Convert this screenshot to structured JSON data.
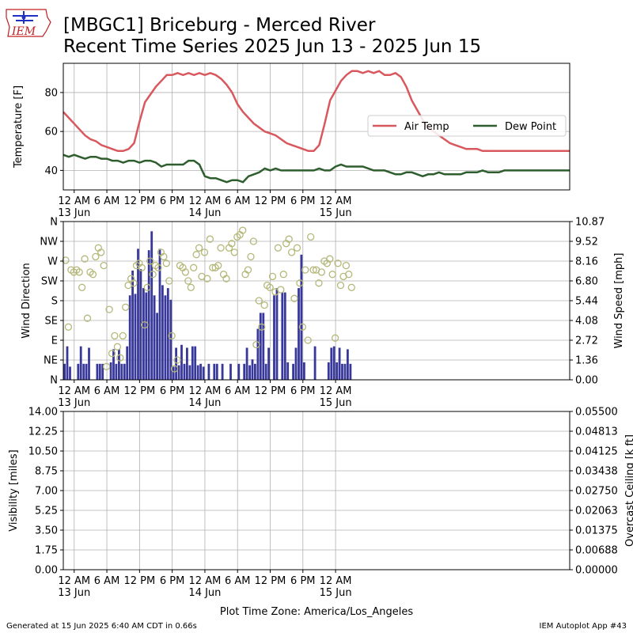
{
  "header": {
    "logo_text": "IEM",
    "title_line1": "[MBGC1] Briceburg - Merced River",
    "title_line2": "Recent Time Series 2025 Jun 13 - 2025 Jun 15"
  },
  "footer": {
    "generated": "Generated at 15 Jun 2025 6:40 AM CDT in 0.66s",
    "app": "IEM Autoplot App #43",
    "timezone_label": "Plot Time Zone: America/Los_Angeles"
  },
  "colors": {
    "air_temp": "#d9585e",
    "dew_point": "#2e5d2e",
    "wind_speed_bars": "#38389a",
    "wind_direction_markers": "#b5b87a",
    "ceiling_label": "#008000",
    "grid": "#b0b0b0"
  },
  "time_axis": {
    "xlim_hours": [
      -2,
      91
    ],
    "ticks": [
      {
        "hour": 0,
        "line1": "12 AM",
        "line2": "13 Jun"
      },
      {
        "hour": 6,
        "line1": "6 AM",
        "line2": ""
      },
      {
        "hour": 12,
        "line1": "12 PM",
        "line2": ""
      },
      {
        "hour": 18,
        "line1": "6 PM",
        "line2": ""
      },
      {
        "hour": 24,
        "line1": "12 AM",
        "line2": "14 Jun"
      },
      {
        "hour": 30,
        "line1": "6 AM",
        "line2": ""
      },
      {
        "hour": 36,
        "line1": "12 PM",
        "line2": ""
      },
      {
        "hour": 42,
        "line1": "6 PM",
        "line2": ""
      },
      {
        "hour": 48,
        "line1": "12 AM",
        "line2": "15 Jun"
      }
    ]
  },
  "chart_data": [
    {
      "type": "line",
      "ylabel": "Temperature [F]",
      "ylim": [
        30,
        95
      ],
      "yticks": [
        40,
        60,
        80
      ],
      "grid": true,
      "legend": "center-right",
      "series": [
        {
          "name": "Air Temp",
          "x": [
            -2,
            -1,
            0,
            1,
            2,
            3,
            4,
            5,
            6,
            7,
            8,
            9,
            10,
            11,
            12,
            13,
            14,
            15,
            16,
            17,
            18,
            19,
            20,
            21,
            22,
            23,
            24,
            25,
            26,
            27,
            28,
            29,
            30,
            31,
            32,
            33,
            34,
            35,
            36,
            37,
            38,
            39,
            40,
            41,
            42,
            43,
            44,
            45,
            46,
            47,
            48,
            49,
            50,
            51,
            52,
            53,
            54,
            55,
            56,
            57,
            58,
            59,
            60,
            61,
            62,
            63,
            64,
            65,
            66,
            67,
            68,
            69,
            70,
            71,
            72,
            73,
            74,
            75,
            76,
            77,
            78,
            79,
            80,
            81,
            82,
            83,
            84,
            85,
            86,
            87,
            88,
            89,
            90,
            91
          ],
          "y": [
            70,
            67,
            64,
            61,
            58,
            56,
            55,
            53,
            52,
            51,
            50,
            50,
            51,
            54,
            65,
            75,
            79,
            83,
            86,
            89,
            89,
            90,
            89,
            90,
            89,
            90,
            89,
            90,
            89,
            87,
            84,
            80,
            74,
            70,
            67,
            64,
            62,
            60,
            59,
            58,
            56,
            54,
            53,
            52,
            51,
            50,
            50,
            53,
            64,
            76,
            81,
            86,
            89,
            91,
            91,
            90,
            91,
            90,
            91,
            89,
            89,
            90,
            88,
            83,
            76,
            71,
            66,
            62,
            60,
            58,
            56,
            54,
            53,
            52,
            51,
            51,
            51,
            50,
            50,
            50,
            50,
            50,
            50,
            50,
            50,
            50,
            50,
            50,
            50,
            50,
            50,
            50,
            50,
            50
          ]
        },
        {
          "name": "Dew Point",
          "x": [
            -2,
            -1,
            0,
            1,
            2,
            3,
            4,
            5,
            6,
            7,
            8,
            9,
            10,
            11,
            12,
            13,
            14,
            15,
            16,
            17,
            18,
            19,
            20,
            21,
            22,
            23,
            24,
            25,
            26,
            27,
            28,
            29,
            30,
            31,
            32,
            33,
            34,
            35,
            36,
            37,
            38,
            39,
            40,
            41,
            42,
            43,
            44,
            45,
            46,
            47,
            48,
            49,
            50,
            51,
            52,
            53,
            54,
            55,
            56,
            57,
            58,
            59,
            60,
            61,
            62,
            63,
            64,
            65,
            66,
            67,
            68,
            69,
            70,
            71,
            72,
            73,
            74,
            75,
            76,
            77,
            78,
            79,
            80,
            81,
            82,
            83,
            84,
            85,
            86,
            87,
            88,
            89,
            90,
            91
          ],
          "y": [
            48,
            47,
            48,
            47,
            46,
            47,
            47,
            46,
            46,
            45,
            45,
            44,
            45,
            45,
            44,
            45,
            45,
            44,
            42,
            43,
            43,
            43,
            43,
            45,
            45,
            43,
            37,
            36,
            36,
            35,
            34,
            35,
            35,
            34,
            37,
            38,
            39,
            41,
            40,
            41,
            40,
            40,
            40,
            40,
            40,
            40,
            40,
            41,
            40,
            40,
            42,
            43,
            42,
            42,
            42,
            42,
            41,
            40,
            40,
            40,
            39,
            38,
            38,
            39,
            39,
            38,
            37,
            38,
            38,
            39,
            38,
            38,
            38,
            38,
            39,
            39,
            39,
            40,
            39,
            39,
            39,
            40,
            40,
            40,
            40,
            40,
            40,
            40,
            40,
            40,
            40,
            40,
            40,
            40
          ]
        }
      ]
    },
    {
      "type": "bar",
      "ylabel": "Wind Direction",
      "y2label": "Wind Speed [mph]",
      "ylim": [
        0,
        360
      ],
      "yticks": [
        {
          "value": 0,
          "label": "N"
        },
        {
          "value": 45,
          "label": "NE"
        },
        {
          "value": 90,
          "label": "E"
        },
        {
          "value": 135,
          "label": "SE"
        },
        {
          "value": 180,
          "label": "S"
        },
        {
          "value": 225,
          "label": "SW"
        },
        {
          "value": 270,
          "label": "W"
        },
        {
          "value": 315,
          "label": "NW"
        },
        {
          "value": 360,
          "label": "N"
        }
      ],
      "y2lim": [
        0,
        10.87
      ],
      "y2ticks": [
        "0.00",
        "1.36",
        "2.72",
        "4.08",
        "5.44",
        "6.80",
        "8.16",
        "9.52",
        "10.87"
      ],
      "grid": true,
      "wind_speed": {
        "name": "Wind Speed",
        "x": [
          -2,
          -1.5,
          -1,
          -0.5,
          0,
          0.5,
          1,
          1.5,
          2,
          2.5,
          3,
          3.5,
          4,
          4.5,
          5,
          5.5,
          6,
          6.5,
          7,
          7.5,
          8,
          8.5,
          9,
          9.5,
          10,
          10.5,
          11,
          11.5,
          12,
          12.5,
          13,
          13.5,
          14,
          14.5,
          15,
          15.5,
          16,
          16.5,
          17,
          17.5,
          18,
          18.5,
          19,
          19.5,
          20,
          20.5,
          21,
          21.5,
          22,
          22.5,
          23,
          23.5,
          24,
          24.5,
          25,
          25.5,
          26,
          26.5,
          27,
          27.5,
          28,
          28.5,
          29,
          29.5,
          30,
          30.5,
          31,
          31.5,
          32,
          32.5,
          33,
          33.5,
          34,
          34.5,
          35,
          35.5,
          36,
          36.5,
          37,
          37.5,
          38,
          38.5,
          39,
          39.5,
          40,
          40.5,
          41,
          41.5,
          42,
          42.5,
          43,
          43.5,
          44,
          44.5,
          45,
          45.5,
          46,
          46.5,
          47,
          47.5,
          48,
          48.5,
          49,
          49.5,
          50,
          50.5
        ],
        "values": [
          1.1,
          2.3,
          0.9,
          0,
          0,
          1.1,
          2.3,
          1.1,
          1.1,
          2.2,
          0,
          0,
          1.1,
          1.1,
          1.1,
          0,
          0,
          1.2,
          2.1,
          1.1,
          2.1,
          1.1,
          1.1,
          2.3,
          5.8,
          7.5,
          5.9,
          9.0,
          7.6,
          6.3,
          6.0,
          8.9,
          10.2,
          5.8,
          4.6,
          9.0,
          6.5,
          5.8,
          6.3,
          5.5,
          0.9,
          2.2,
          1.0,
          2.4,
          1.1,
          2.2,
          1.0,
          2.3,
          2.3,
          1.0,
          1.1,
          0.9,
          0,
          1.1,
          0,
          1.1,
          1.1,
          0,
          1.1,
          0,
          0,
          1.1,
          0,
          0,
          1.1,
          0,
          1.1,
          2.2,
          1.0,
          1.4,
          1.1,
          3.5,
          4.6,
          4.6,
          1.1,
          2.2,
          0,
          5.8,
          6.3,
          0,
          6.0,
          6.0,
          1.2,
          0,
          1.1,
          2.2,
          6.3,
          8.6,
          1.2,
          0,
          0,
          0,
          2.3,
          0,
          0,
          0,
          0,
          1.2,
          2.2,
          2.3,
          1.2,
          2.2,
          1.1,
          1.1,
          2.1,
          1.1
        ]
      },
      "wind_direction": {
        "name": "Wind Direction",
        "x": [
          -2,
          -1.5,
          -1,
          -0.5,
          0,
          0.5,
          1,
          1.5,
          2,
          2.5,
          3,
          3.5,
          4,
          4.5,
          5,
          5.5,
          6,
          6.5,
          7,
          7.5,
          8,
          8.5,
          9,
          9.5,
          10,
          10.5,
          11,
          11.5,
          12,
          12.5,
          13,
          13.5,
          14,
          14.5,
          15,
          15.5,
          16,
          16.5,
          17,
          17.5,
          18,
          18.5,
          19,
          19.5,
          20,
          20.5,
          21,
          21.5,
          22,
          22.5,
          23,
          23.5,
          24,
          24.5,
          25,
          25.5,
          26,
          26.5,
          27,
          27.5,
          28,
          28.5,
          29,
          29.5,
          30,
          30.5,
          31,
          31.5,
          32,
          32.5,
          33,
          33.5,
          34,
          34.5,
          35,
          35.5,
          36,
          36.5,
          37,
          37.5,
          38,
          38.5,
          39,
          39.5,
          40,
          40.5,
          41,
          41.5,
          42,
          42.5,
          43,
          43.5,
          44,
          44.5,
          45,
          45.5,
          46,
          46.5,
          47,
          47.5,
          48,
          48.5,
          49,
          49.5,
          50,
          50.5
        ],
        "values": [
          272,
          120,
          250,
          245,
          250,
          245,
          210,
          275,
          140,
          245,
          240,
          280,
          300,
          290,
          260,
          30,
          160,
          60,
          100,
          75,
          50,
          100,
          165,
          215,
          230,
          220,
          260,
          265,
          255,
          125,
          210,
          270,
          240,
          260,
          255,
          290,
          280,
          265,
          225,
          100,
          25,
          45,
          260,
          255,
          245,
          225,
          210,
          255,
          285,
          300,
          235,
          290,
          230,
          320,
          255,
          255,
          260,
          300,
          240,
          230,
          300,
          310,
          290,
          325,
          330,
          340,
          240,
          250,
          280,
          315,
          80,
          180,
          120,
          170,
          215,
          210,
          235,
          200,
          300,
          205,
          240,
          310,
          320,
          290,
          185,
          300,
          220,
          120,
          250,
          90,
          325,
          250,
          250,
          220,
          245,
          270,
          265,
          275,
          240,
          95,
          265,
          215,
          235,
          260,
          240,
          210
        ]
      }
    },
    {
      "type": "line",
      "ylabel": "Visibility [miles]",
      "y2label": "Overcast Ceiling [k ft]",
      "ylim": [
        0,
        14
      ],
      "yticks": [
        "0.00",
        "1.75",
        "3.50",
        "5.25",
        "7.00",
        "8.75",
        "10.50",
        "12.25",
        "14.00"
      ],
      "y2lim": [
        0,
        0.055
      ],
      "y2ticks": [
        "0.00000",
        "0.00688",
        "0.01375",
        "0.02063",
        "0.02750",
        "0.03438",
        "0.04125",
        "0.04813",
        "0.05500"
      ],
      "grid": true,
      "series": []
    }
  ]
}
